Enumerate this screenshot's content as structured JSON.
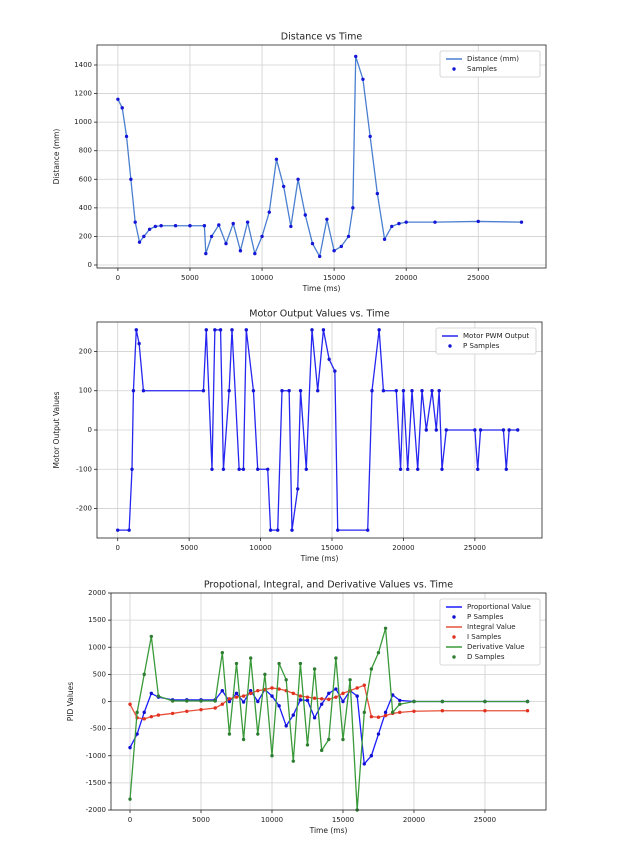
{
  "chart_data": [
    {
      "type": "line",
      "title": "Distance vs Time",
      "xlabel": "Time (ms)",
      "ylabel": "Distance (mm)",
      "x": [
        0,
        300,
        600,
        900,
        1200,
        1500,
        1800,
        2200,
        2600,
        3000,
        4000,
        5000,
        6000,
        6100,
        6500,
        7000,
        7500,
        8000,
        8500,
        9000,
        9500,
        10000,
        10500,
        11000,
        11500,
        12000,
        12500,
        13000,
        13500,
        14000,
        14500,
        15000,
        15500,
        16000,
        16300,
        16500,
        17000,
        17500,
        18000,
        18500,
        19000,
        19500,
        20000,
        22000,
        25000,
        28000
      ],
      "series": [
        {
          "name": "Distance (mm)",
          "color": "#4a7fd0",
          "marker_name": "Samples",
          "marker_color": "#1515d8",
          "values": [
            1160,
            1100,
            900,
            600,
            300,
            160,
            200,
            250,
            270,
            275,
            275,
            275,
            275,
            80,
            200,
            280,
            150,
            290,
            100,
            300,
            80,
            200,
            370,
            740,
            550,
            270,
            600,
            350,
            150,
            60,
            320,
            100,
            130,
            200,
            400,
            1460,
            1300,
            900,
            500,
            180,
            270,
            290,
            300,
            300,
            305,
            300
          ]
        }
      ],
      "xlim": [
        -1450,
        29700
      ],
      "ylim": [
        -21,
        1540
      ],
      "xticks": [
        0,
        5000,
        10000,
        15000,
        20000,
        25000
      ],
      "yticks": [
        0,
        200,
        400,
        600,
        800,
        1000,
        1200,
        1400
      ],
      "grid": true,
      "legend": "upper right"
    },
    {
      "type": "line",
      "title": "Motor Output Values vs. Time",
      "xlabel": "Time (ms)",
      "ylabel": "Motor Output Values",
      "x": [
        0,
        800,
        1000,
        1100,
        1300,
        1500,
        1800,
        6000,
        6200,
        6600,
        6800,
        7200,
        7400,
        7800,
        8000,
        8500,
        8800,
        9000,
        9500,
        9800,
        10500,
        10700,
        11200,
        11500,
        12000,
        12200,
        12600,
        12800,
        13200,
        13600,
        14000,
        14400,
        14800,
        15200,
        15400,
        17500,
        17800,
        18300,
        18600,
        19500,
        19800,
        20000,
        20300,
        20600,
        21000,
        21300,
        21600,
        22000,
        22300,
        22500,
        22700,
        23000,
        25000,
        25200,
        25400,
        27000,
        27200,
        27400,
        28000
      ],
      "series": [
        {
          "name": "Motor PWM Output",
          "color": "#2626f0",
          "marker_name": "P Samples",
          "marker_color": "#1515d8",
          "values": [
            -255,
            -255,
            -100,
            100,
            255,
            220,
            100,
            100,
            255,
            -100,
            255,
            255,
            -100,
            100,
            255,
            -100,
            -100,
            255,
            100,
            -100,
            -100,
            -255,
            -255,
            100,
            100,
            -255,
            -150,
            100,
            -100,
            255,
            100,
            255,
            180,
            150,
            -255,
            -255,
            100,
            255,
            100,
            100,
            -100,
            100,
            -100,
            100,
            -100,
            100,
            0,
            100,
            0,
            100,
            -100,
            0,
            0,
            -100,
            0,
            0,
            -100,
            0,
            0
          ]
        }
      ],
      "xlim": [
        -1450,
        29700
      ],
      "ylim": [
        -275,
        275
      ],
      "xticks": [
        0,
        5000,
        10000,
        15000,
        20000,
        25000
      ],
      "yticks": [
        -200,
        -100,
        0,
        100,
        200
      ],
      "grid": true,
      "legend": "upper right"
    },
    {
      "type": "line",
      "title": "Propotional, Integral, and Derivative Values vs. Time",
      "xlabel": "Time (ms)",
      "ylabel": "PID Values",
      "x": [
        0,
        500,
        1000,
        1500,
        2000,
        3000,
        4000,
        5000,
        6000,
        6500,
        7000,
        7500,
        8000,
        8500,
        9000,
        9500,
        10000,
        10500,
        11000,
        11500,
        12000,
        12500,
        13000,
        13500,
        14000,
        14500,
        15000,
        15500,
        16000,
        16500,
        17000,
        17500,
        18000,
        18500,
        19000,
        20000,
        22000,
        25000,
        28000
      ],
      "series": [
        {
          "name": "Proportional Value",
          "color": "#1a1aff",
          "marker_name": "P Samples",
          "marker_color": "#1010d0",
          "values": [
            -850,
            -600,
            -200,
            150,
            80,
            30,
            30,
            30,
            30,
            200,
            0,
            150,
            -10,
            200,
            0,
            220,
            100,
            -80,
            -450,
            -250,
            30,
            20,
            -300,
            -50,
            150,
            230,
            0,
            200,
            100,
            -1150,
            -1000,
            -600,
            -200,
            120,
            20,
            0,
            0,
            0,
            0
          ]
        },
        {
          "name": "Integral Value",
          "color": "#e8503a",
          "marker_name": "I Samples",
          "marker_color": "#e03020",
          "values": [
            -50,
            -300,
            -320,
            -280,
            -250,
            -220,
            -180,
            -150,
            -120,
            -50,
            50,
            80,
            100,
            150,
            200,
            220,
            250,
            230,
            200,
            150,
            100,
            80,
            60,
            50,
            40,
            80,
            150,
            200,
            250,
            300,
            -280,
            -290,
            -260,
            -220,
            -200,
            -180,
            -170,
            -170,
            -170
          ]
        },
        {
          "name": "Derivative Value",
          "color": "#3a9a3a",
          "marker_name": "D Samples",
          "marker_color": "#2e7d32",
          "values": [
            -1800,
            -200,
            500,
            1200,
            100,
            10,
            10,
            10,
            10,
            900,
            -600,
            700,
            -700,
            800,
            -600,
            500,
            -1000,
            700,
            400,
            -1100,
            700,
            -800,
            600,
            -900,
            -700,
            800,
            -700,
            400,
            -2000,
            -200,
            600,
            900,
            1350,
            -200,
            -50,
            0,
            0,
            0,
            0
          ]
        }
      ],
      "xlim": [
        -1340,
        29300
      ],
      "ylim": [
        -2000,
        2000
      ],
      "xticks": [
        0,
        5000,
        10000,
        15000,
        20000,
        25000
      ],
      "yticks": [
        -2000,
        -1500,
        -1000,
        -500,
        0,
        500,
        1000,
        1500,
        2000
      ],
      "grid": true,
      "legend": "upper right"
    }
  ]
}
